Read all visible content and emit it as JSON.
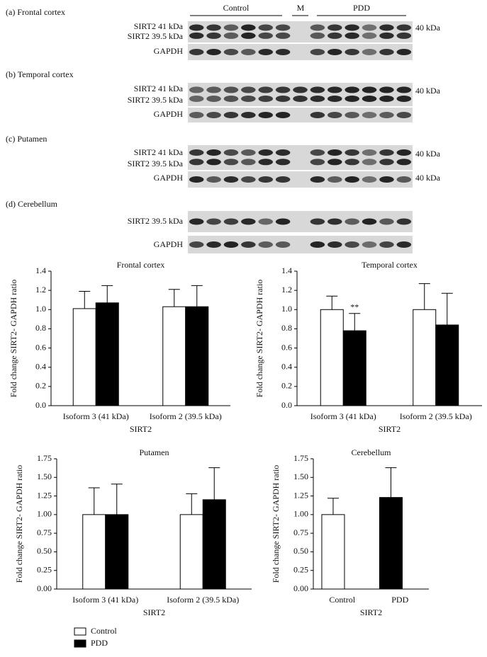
{
  "blots": {
    "group_labels": [
      "Control",
      "M",
      "PDD"
    ],
    "panels": [
      {
        "title": "(a) Frontal cortex",
        "rows": [
          "SIRT2 41 kDa",
          "SIRT2 39.5 kDa",
          "GAPDH"
        ],
        "markers": [
          "40 kDa"
        ]
      },
      {
        "title": "(b) Temporal cortex",
        "rows": [
          "SIRT2 41 kDa",
          "SIRT2 39.5 kDa",
          "GAPDH"
        ],
        "markers": [
          "40 kDa"
        ]
      },
      {
        "title": "(c) Putamen",
        "rows": [
          "SIRT2 41 kDa",
          "SIRT2 39.5 kDa",
          "GAPDH"
        ],
        "markers": [
          "40 kDa",
          "40 kDa"
        ]
      },
      {
        "title": "(d) Cerebellum",
        "rows": [
          "SIRT2 39.5 kDa",
          "GAPDH"
        ],
        "markers": []
      }
    ]
  },
  "legend": [
    {
      "name": "Control",
      "color": "#ffffff"
    },
    {
      "name": "PDD",
      "color": "#000000"
    }
  ],
  "chart_data": [
    {
      "type": "bar",
      "title": "Frontal cortex",
      "y_label": "Fold change SIRT2- GAPDH ratio",
      "x_label": "SIRT2",
      "categories": [
        "Isoform 3 (41 kDa)",
        "Isoform 2 (39.5 kDa)"
      ],
      "series": [
        {
          "values": [
            1.01,
            1.03
          ],
          "errors": [
            0.18,
            0.18
          ]
        },
        {
          "values": [
            1.07,
            1.03
          ],
          "errors": [
            0.18,
            0.22
          ]
        }
      ],
      "ylim": [
        0,
        1.4
      ],
      "yticks": [
        {
          "value": 0,
          "label": "0.0"
        },
        0.2,
        0.4,
        0.6,
        0.8,
        {
          "value": 1,
          "label": "1.0"
        },
        1.2,
        1.4
      ]
    },
    {
      "type": "bar",
      "title": "Temporal cortex",
      "y_label": "Fold change SIRT2- GAPDH ratio",
      "x_label": "SIRT2",
      "categories": [
        "Isoform 3 (41 kDa)",
        "Isoform 2 (39.5 kDa)"
      ],
      "series": [
        {
          "values": [
            1.0,
            1.0
          ],
          "errors": [
            0.14,
            0.27
          ]
        },
        {
          "values": [
            0.78,
            0.84
          ],
          "errors": [
            0.18,
            0.33
          ]
        }
      ],
      "annotation": "**",
      "ylim": [
        0,
        1.4
      ],
      "yticks": [
        {
          "value": 0,
          "label": "0.0"
        },
        0.2,
        0.4,
        0.6,
        0.8,
        {
          "value": 1,
          "label": "1.0"
        },
        1.2,
        1.4
      ]
    },
    {
      "type": "bar",
      "title": "Putamen",
      "y_label": "Fold change SIRT2- GAPDH ratio",
      "x_label": "SIRT2",
      "categories": [
        "Isoform 3 (41 kDa)",
        "Isoform 2 (39.5 kDa)"
      ],
      "series": [
        {
          "values": [
            1.0,
            1.0
          ],
          "errors": [
            0.36,
            0.28
          ]
        },
        {
          "values": [
            1.0,
            1.2
          ],
          "errors": [
            0.41,
            0.43
          ]
        }
      ],
      "ylim": [
        0,
        1.75
      ],
      "yticks": [
        {
          "value": 0,
          "label": "0.00"
        },
        0.25,
        {
          "value": 0.5,
          "label": "0.50"
        },
        0.75,
        {
          "value": 1,
          "label": "1.00"
        },
        1.25,
        {
          "value": 1.5,
          "label": "1.50"
        },
        1.75
      ]
    },
    {
      "type": "bar",
      "title": "Cerebellum",
      "y_label": "Fold change SIRT2- GAPDH ratio",
      "x_label": "SIRT2",
      "categories": [
        "Control",
        "PDD"
      ],
      "values": [
        1.0,
        1.23
      ],
      "errors": [
        0.22,
        0.4
      ],
      "ylim": [
        0,
        1.75
      ],
      "yticks": [
        {
          "value": 0,
          "label": "0.00"
        },
        0.25,
        {
          "value": 0.5,
          "label": "0.50"
        },
        0.75,
        {
          "value": 1,
          "label": "1.00"
        },
        1.25,
        {
          "value": 1.5,
          "label": "1.50"
        },
        1.75
      ]
    }
  ]
}
